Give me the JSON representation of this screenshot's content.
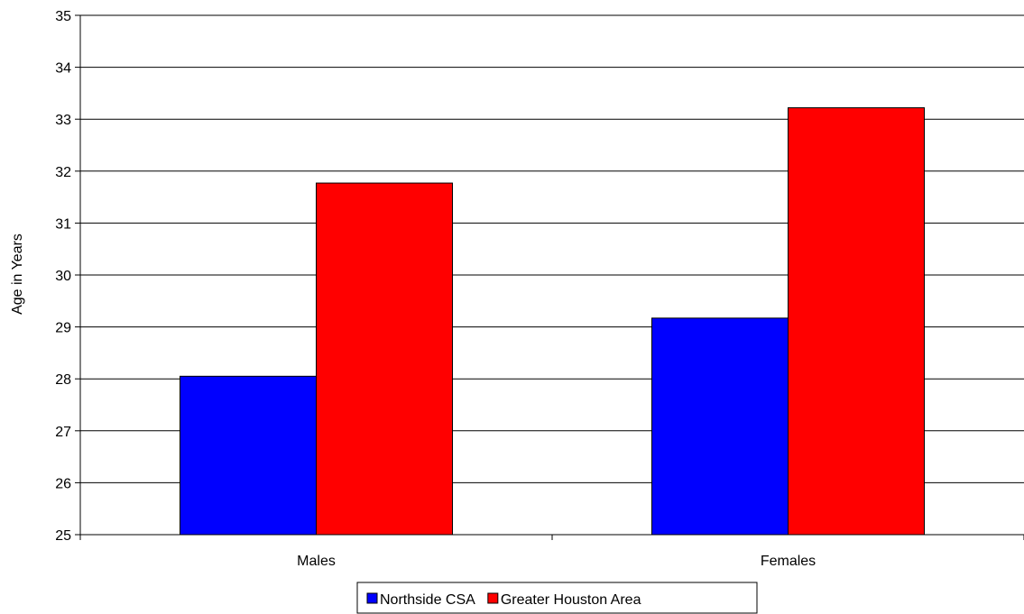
{
  "chart_data": {
    "type": "bar",
    "title": "",
    "xlabel": "",
    "ylabel": "Age in Years",
    "ylim": [
      25,
      35
    ],
    "yticks": [
      25,
      26,
      27,
      28,
      29,
      30,
      31,
      32,
      33,
      34,
      35
    ],
    "categories": [
      "Males",
      "Females"
    ],
    "series": [
      {
        "name": "Northside CSA",
        "color": "#0000ff",
        "values": [
          28.05,
          29.17
        ]
      },
      {
        "name": "Greater Houston Area",
        "color": "#ff0000",
        "values": [
          31.77,
          33.22
        ]
      }
    ],
    "grid": true,
    "legend_position": "bottom-center"
  }
}
